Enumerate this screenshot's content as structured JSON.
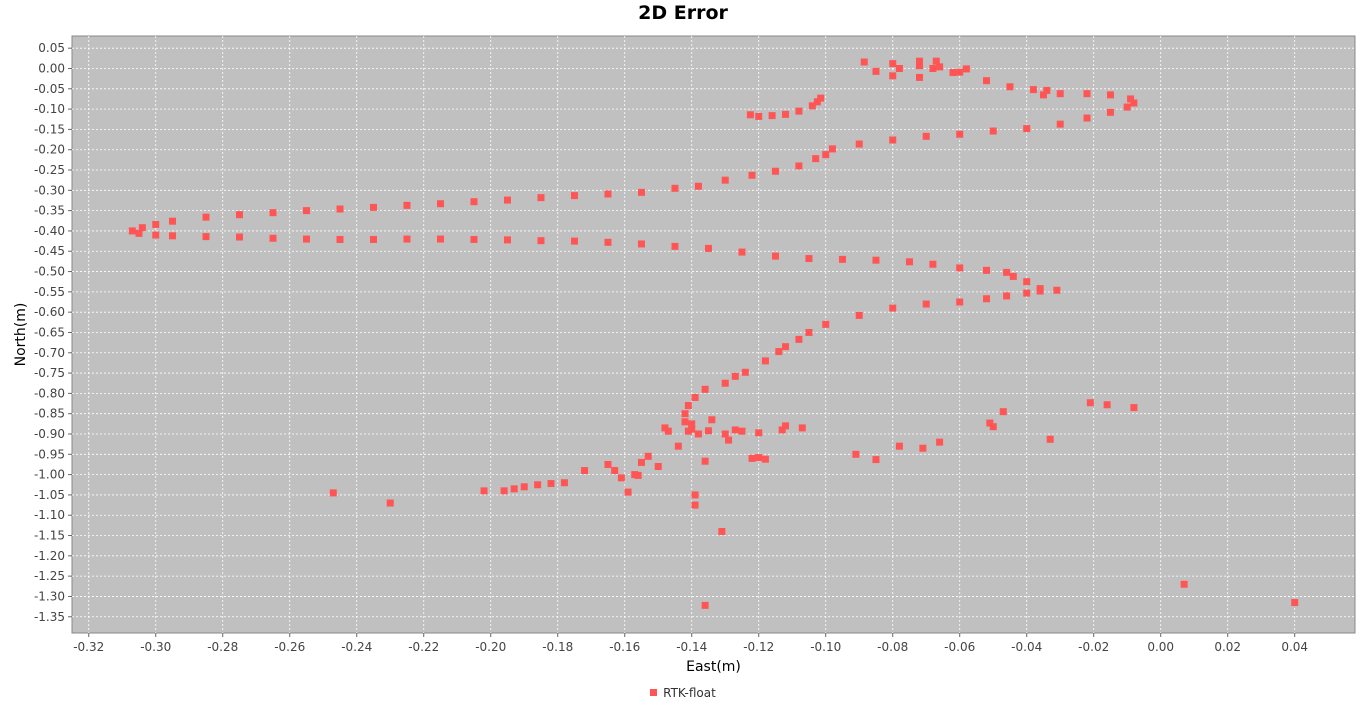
{
  "chart_data": {
    "type": "scatter",
    "title": "2D Error",
    "xlabel": "East(m)",
    "ylabel": "North(m)",
    "xlim": [
      -0.325,
      0.058
    ],
    "ylim": [
      -1.39,
      0.08
    ],
    "xticks": [
      -0.32,
      -0.3,
      -0.28,
      -0.26,
      -0.24,
      -0.22,
      -0.2,
      -0.18,
      -0.16,
      -0.14,
      -0.12,
      -0.1,
      -0.08,
      -0.06,
      -0.04,
      -0.02,
      0.0,
      0.02,
      0.04
    ],
    "yticks": [
      0.05,
      0.0,
      -0.05,
      -0.1,
      -0.15,
      -0.2,
      -0.25,
      -0.3,
      -0.35,
      -0.4,
      -0.45,
      -0.5,
      -0.55,
      -0.6,
      -0.65,
      -0.7,
      -0.75,
      -0.8,
      -0.85,
      -0.9,
      -0.95,
      -1.0,
      -1.05,
      -1.1,
      -1.15,
      -1.2,
      -1.25,
      -1.3,
      -1.35
    ],
    "grid": true,
    "legend_position": "bottom",
    "background_color": "#c0c0c0",
    "series": [
      {
        "name": "RTK-float",
        "color": "#ff5555",
        "points": [
          [
            -0.1015,
            -0.073
          ],
          [
            -0.1025,
            -0.082
          ],
          [
            -0.104,
            -0.092
          ],
          [
            -0.108,
            -0.105
          ],
          [
            -0.112,
            -0.113
          ],
          [
            -0.116,
            -0.116
          ],
          [
            -0.12,
            -0.118
          ],
          [
            -0.1225,
            -0.114
          ],
          [
            -0.0885,
            0.016
          ],
          [
            -0.08,
            0.012
          ],
          [
            -0.072,
            0.007
          ],
          [
            -0.068,
            0.0
          ],
          [
            -0.066,
            0.004
          ],
          [
            -0.067,
            0.018
          ],
          [
            -0.072,
            0.018
          ],
          [
            -0.078,
            0.0
          ],
          [
            -0.085,
            -0.007
          ],
          [
            -0.08,
            -0.018
          ],
          [
            -0.072,
            -0.022
          ],
          [
            -0.062,
            -0.01
          ],
          [
            -0.058,
            -0.001
          ],
          [
            -0.06,
            -0.009
          ],
          [
            -0.052,
            -0.03
          ],
          [
            -0.045,
            -0.045
          ],
          [
            -0.038,
            -0.052
          ],
          [
            -0.034,
            -0.054
          ],
          [
            -0.035,
            -0.065
          ],
          [
            -0.03,
            -0.062
          ],
          [
            -0.022,
            -0.062
          ],
          [
            -0.015,
            -0.065
          ],
          [
            -0.009,
            -0.075
          ],
          [
            -0.008,
            -0.085
          ],
          [
            -0.01,
            -0.095
          ],
          [
            -0.015,
            -0.108
          ],
          [
            -0.022,
            -0.122
          ],
          [
            -0.03,
            -0.137
          ],
          [
            -0.04,
            -0.148
          ],
          [
            -0.05,
            -0.154
          ],
          [
            -0.06,
            -0.162
          ],
          [
            -0.07,
            -0.167
          ],
          [
            -0.08,
            -0.176
          ],
          [
            -0.09,
            -0.186
          ],
          [
            -0.098,
            -0.198
          ],
          [
            -0.1,
            -0.212
          ],
          [
            -0.103,
            -0.222
          ],
          [
            -0.108,
            -0.24
          ],
          [
            -0.115,
            -0.253
          ],
          [
            -0.122,
            -0.263
          ],
          [
            -0.13,
            -0.275
          ],
          [
            -0.138,
            -0.29
          ],
          [
            -0.145,
            -0.295
          ],
          [
            -0.155,
            -0.305
          ],
          [
            -0.165,
            -0.309
          ],
          [
            -0.175,
            -0.313
          ],
          [
            -0.185,
            -0.318
          ],
          [
            -0.195,
            -0.324
          ],
          [
            -0.205,
            -0.328
          ],
          [
            -0.215,
            -0.333
          ],
          [
            -0.225,
            -0.337
          ],
          [
            -0.235,
            -0.342
          ],
          [
            -0.245,
            -0.346
          ],
          [
            -0.255,
            -0.35
          ],
          [
            -0.265,
            -0.355
          ],
          [
            -0.275,
            -0.36
          ],
          [
            -0.285,
            -0.366
          ],
          [
            -0.295,
            -0.376
          ],
          [
            -0.3,
            -0.384
          ],
          [
            -0.304,
            -0.392
          ],
          [
            -0.307,
            -0.4
          ],
          [
            -0.305,
            -0.406
          ],
          [
            -0.3,
            -0.41
          ],
          [
            -0.295,
            -0.412
          ],
          [
            -0.285,
            -0.414
          ],
          [
            -0.275,
            -0.415
          ],
          [
            -0.265,
            -0.418
          ],
          [
            -0.255,
            -0.42
          ],
          [
            -0.245,
            -0.421
          ],
          [
            -0.235,
            -0.421
          ],
          [
            -0.225,
            -0.42
          ],
          [
            -0.215,
            -0.42
          ],
          [
            -0.205,
            -0.421
          ],
          [
            -0.195,
            -0.422
          ],
          [
            -0.185,
            -0.424
          ],
          [
            -0.175,
            -0.425
          ],
          [
            -0.165,
            -0.428
          ],
          [
            -0.155,
            -0.432
          ],
          [
            -0.145,
            -0.438
          ],
          [
            -0.135,
            -0.443
          ],
          [
            -0.125,
            -0.452
          ],
          [
            -0.115,
            -0.462
          ],
          [
            -0.105,
            -0.468
          ],
          [
            -0.095,
            -0.47
          ],
          [
            -0.085,
            -0.472
          ],
          [
            -0.075,
            -0.476
          ],
          [
            -0.068,
            -0.482
          ],
          [
            -0.06,
            -0.491
          ],
          [
            -0.052,
            -0.497
          ],
          [
            -0.046,
            -0.502
          ],
          [
            -0.044,
            -0.512
          ],
          [
            -0.04,
            -0.525
          ],
          [
            -0.036,
            -0.542
          ],
          [
            -0.031,
            -0.546
          ],
          [
            -0.036,
            -0.548
          ],
          [
            -0.04,
            -0.553
          ],
          [
            -0.046,
            -0.56
          ],
          [
            -0.052,
            -0.567
          ],
          [
            -0.06,
            -0.575
          ],
          [
            -0.07,
            -0.58
          ],
          [
            -0.08,
            -0.59
          ],
          [
            -0.09,
            -0.608
          ],
          [
            -0.1,
            -0.63
          ],
          [
            -0.105,
            -0.65
          ],
          [
            -0.108,
            -0.667
          ],
          [
            -0.112,
            -0.685
          ],
          [
            -0.114,
            -0.697
          ],
          [
            -0.118,
            -0.72
          ],
          [
            -0.124,
            -0.748
          ],
          [
            -0.127,
            -0.758
          ],
          [
            -0.13,
            -0.775
          ],
          [
            -0.136,
            -0.79
          ],
          [
            -0.139,
            -0.81
          ],
          [
            -0.141,
            -0.83
          ],
          [
            -0.142,
            -0.85
          ],
          [
            -0.142,
            -0.87
          ],
          [
            -0.141,
            -0.893
          ],
          [
            -0.138,
            -0.9
          ],
          [
            -0.135,
            -0.892
          ],
          [
            -0.13,
            -0.9
          ],
          [
            -0.125,
            -0.893
          ],
          [
            -0.12,
            -0.897
          ],
          [
            -0.113,
            -0.89
          ],
          [
            -0.107,
            -0.885
          ],
          [
            -0.148,
            -0.885
          ],
          [
            -0.147,
            -0.893
          ],
          [
            -0.144,
            -0.93
          ],
          [
            -0.134,
            -0.865
          ],
          [
            -0.129,
            -0.915
          ],
          [
            -0.127,
            -0.89
          ],
          [
            -0.122,
            -0.96
          ],
          [
            -0.12,
            -0.958
          ],
          [
            -0.118,
            -0.962
          ],
          [
            -0.112,
            -0.88
          ],
          [
            -0.091,
            -0.95
          ],
          [
            -0.085,
            -0.963
          ],
          [
            -0.078,
            -0.93
          ],
          [
            -0.071,
            -0.935
          ],
          [
            -0.066,
            -0.92
          ],
          [
            -0.051,
            -0.873
          ],
          [
            -0.05,
            -0.882
          ],
          [
            -0.047,
            -0.845
          ],
          [
            -0.033,
            -0.913
          ],
          [
            -0.021,
            -0.823
          ],
          [
            -0.016,
            -0.828
          ],
          [
            -0.008,
            -0.835
          ],
          [
            -0.247,
            -1.045
          ],
          [
            -0.23,
            -1.07
          ],
          [
            -0.202,
            -1.04
          ],
          [
            -0.196,
            -1.04
          ],
          [
            -0.193,
            -1.035
          ],
          [
            -0.19,
            -1.03
          ],
          [
            -0.186,
            -1.025
          ],
          [
            -0.182,
            -1.022
          ],
          [
            -0.178,
            -1.02
          ],
          [
            -0.172,
            -0.99
          ],
          [
            -0.165,
            -0.975
          ],
          [
            -0.163,
            -0.99
          ],
          [
            -0.161,
            -1.008
          ],
          [
            -0.159,
            -1.043
          ],
          [
            -0.157,
            -1.0
          ],
          [
            -0.156,
            -1.002
          ],
          [
            -0.155,
            -0.97
          ],
          [
            -0.153,
            -0.955
          ],
          [
            -0.15,
            -0.98
          ],
          [
            -0.14,
            -0.888
          ],
          [
            -0.14,
            -0.875
          ],
          [
            -0.139,
            -1.05
          ],
          [
            -0.139,
            -1.075
          ],
          [
            -0.136,
            -0.967
          ],
          [
            -0.131,
            -1.14
          ],
          [
            -0.136,
            -1.322
          ],
          [
            0.007,
            -1.27
          ],
          [
            0.04,
            -1.315
          ]
        ]
      }
    ]
  }
}
